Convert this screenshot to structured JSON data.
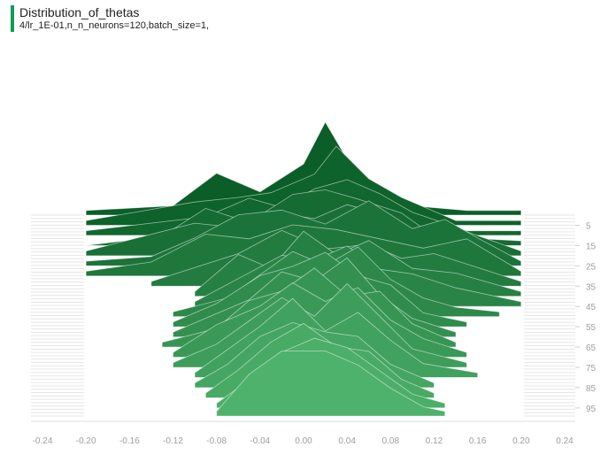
{
  "card": {
    "title": "Distribution_of_thetas",
    "subtitle": "4/lr_1E-01,n_n_neurons=120,batch_size=1,"
  },
  "chart_data": {
    "type": "area",
    "subtype": "tensorboard-histogram-offset",
    "title": "Distribution_of_thetas",
    "x_ticks": [
      "-0.24",
      "-0.20",
      "-0.16",
      "-0.12",
      "-0.08",
      "-0.04",
      "0.00",
      "0.04",
      "0.08",
      "0.12",
      "0.16",
      "0.20",
      "0.24"
    ],
    "xlim": [
      -0.24,
      0.24
    ],
    "step_ticks": [
      "5",
      "15",
      "25",
      "35",
      "45",
      "55",
      "65",
      "75",
      "85",
      "95"
    ],
    "step_range": [
      0,
      99
    ],
    "colors": {
      "back": "#0b5e28",
      "front": "#4fb26c",
      "tick": "#9e9e9e"
    },
    "series": [
      {
        "step": 0,
        "x": [
          -0.2,
          -0.12,
          -0.08,
          -0.04,
          0.0,
          0.02,
          0.05,
          0.1,
          0.15,
          0.2
        ],
        "y": [
          0.05,
          0.1,
          0.45,
          0.25,
          0.55,
          1.0,
          0.4,
          0.1,
          0.05,
          0.05
        ]
      },
      {
        "step": 5,
        "x": [
          -0.2,
          -0.1,
          -0.06,
          -0.03,
          0.01,
          0.03,
          0.06,
          0.09,
          0.14,
          0.2
        ],
        "y": [
          0.05,
          0.25,
          0.3,
          0.35,
          0.55,
          0.85,
          0.5,
          0.3,
          0.05,
          0.05
        ]
      },
      {
        "step": 10,
        "x": [
          -0.2,
          -0.09,
          -0.05,
          -0.02,
          0.01,
          0.04,
          0.07,
          0.1,
          0.15,
          0.2
        ],
        "y": [
          0.05,
          0.2,
          0.4,
          0.3,
          0.5,
          0.6,
          0.45,
          0.25,
          0.05,
          0.05
        ]
      },
      {
        "step": 15,
        "x": [
          -0.2,
          -0.13,
          -0.09,
          -0.05,
          -0.01,
          0.02,
          0.05,
          0.09,
          0.12,
          0.2
        ],
        "y": [
          0.0,
          0.1,
          0.4,
          0.25,
          0.55,
          0.6,
          0.5,
          0.35,
          0.1,
          0.05
        ]
      },
      {
        "step": 20,
        "x": [
          -0.2,
          -0.1,
          -0.06,
          -0.02,
          0.01,
          0.04,
          0.07,
          0.11,
          0.14,
          0.2
        ],
        "y": [
          0.05,
          0.35,
          0.3,
          0.45,
          0.4,
          0.55,
          0.45,
          0.2,
          0.3,
          0.05
        ]
      },
      {
        "step": 25,
        "x": [
          -0.2,
          -0.14,
          -0.1,
          -0.06,
          -0.02,
          0.02,
          0.06,
          0.1,
          0.13,
          0.16,
          0.2
        ],
        "y": [
          0.05,
          0.1,
          0.3,
          0.55,
          0.6,
          0.45,
          0.7,
          0.4,
          0.5,
          0.3,
          0.05
        ]
      },
      {
        "step": 30,
        "x": [
          -0.2,
          -0.14,
          -0.09,
          -0.05,
          -0.01,
          0.03,
          0.07,
          0.11,
          0.15,
          0.2
        ],
        "y": [
          0.05,
          0.15,
          0.45,
          0.4,
          0.55,
          0.5,
          0.4,
          0.3,
          0.4,
          0.05
        ]
      },
      {
        "step": 35,
        "x": [
          -0.14,
          -0.1,
          -0.06,
          -0.02,
          0.02,
          0.06,
          0.09,
          0.12,
          0.16,
          0.2
        ],
        "y": [
          0.05,
          0.2,
          0.35,
          0.6,
          0.4,
          0.45,
          0.3,
          0.35,
          0.2,
          0.05
        ]
      },
      {
        "step": 40,
        "x": [
          -0.1,
          -0.06,
          -0.03,
          0.0,
          0.03,
          0.06,
          0.1,
          0.14,
          0.2
        ],
        "y": [
          0.05,
          0.45,
          0.3,
          0.7,
          0.45,
          0.6,
          0.3,
          0.25,
          0.05
        ]
      },
      {
        "step": 45,
        "x": [
          -0.1,
          -0.06,
          -0.02,
          0.01,
          0.04,
          0.07,
          0.1,
          0.14,
          0.2
        ],
        "y": [
          0.05,
          0.3,
          0.55,
          0.5,
          0.65,
          0.4,
          0.35,
          0.2,
          0.05
        ]
      },
      {
        "step": 50,
        "x": [
          -0.12,
          -0.07,
          -0.04,
          -0.01,
          0.02,
          0.05,
          0.08,
          0.11,
          0.14,
          0.18
        ],
        "y": [
          0.05,
          0.2,
          0.45,
          0.7,
          0.55,
          0.75,
          0.4,
          0.2,
          0.1,
          0.05
        ]
      },
      {
        "step": 55,
        "x": [
          -0.12,
          -0.08,
          -0.04,
          -0.01,
          0.02,
          0.05,
          0.08,
          0.11,
          0.15
        ],
        "y": [
          0.05,
          0.25,
          0.55,
          0.65,
          0.8,
          0.55,
          0.45,
          0.15,
          0.05
        ]
      },
      {
        "step": 60,
        "x": [
          -0.12,
          -0.08,
          -0.05,
          -0.02,
          0.01,
          0.04,
          0.07,
          0.1,
          0.14
        ],
        "y": [
          0.05,
          0.25,
          0.4,
          0.7,
          0.6,
          0.85,
          0.45,
          0.2,
          0.05
        ]
      },
      {
        "step": 65,
        "x": [
          -0.13,
          -0.08,
          -0.05,
          -0.02,
          0.01,
          0.04,
          0.07,
          0.1,
          0.14
        ],
        "y": [
          0.05,
          0.2,
          0.5,
          0.6,
          0.85,
          0.55,
          0.6,
          0.25,
          0.05
        ]
      },
      {
        "step": 70,
        "x": [
          -0.12,
          -0.08,
          -0.04,
          -0.01,
          0.02,
          0.05,
          0.08,
          0.11,
          0.15
        ],
        "y": [
          0.05,
          0.35,
          0.55,
          0.8,
          0.6,
          0.75,
          0.4,
          0.2,
          0.05
        ]
      },
      {
        "step": 75,
        "x": [
          -0.12,
          -0.08,
          -0.05,
          -0.02,
          0.01,
          0.04,
          0.07,
          0.1,
          0.15
        ],
        "y": [
          0.05,
          0.25,
          0.5,
          0.75,
          0.55,
          0.9,
          0.55,
          0.2,
          0.05
        ]
      },
      {
        "step": 80,
        "x": [
          -0.1,
          -0.07,
          -0.04,
          -0.01,
          0.02,
          0.05,
          0.08,
          0.11,
          0.16
        ],
        "y": [
          0.05,
          0.3,
          0.55,
          0.85,
          0.5,
          0.7,
          0.4,
          0.15,
          0.05
        ]
      },
      {
        "step": 85,
        "x": [
          -0.1,
          -0.07,
          -0.04,
          -0.01,
          0.02,
          0.05,
          0.08,
          0.12
        ],
        "y": [
          0.05,
          0.25,
          0.55,
          0.7,
          0.6,
          0.55,
          0.25,
          0.05
        ]
      },
      {
        "step": 90,
        "x": [
          -0.09,
          -0.06,
          -0.03,
          0.0,
          0.03,
          0.06,
          0.09,
          0.12
        ],
        "y": [
          0.05,
          0.3,
          0.6,
          0.8,
          0.55,
          0.5,
          0.2,
          0.05
        ]
      },
      {
        "step": 95,
        "x": [
          -0.08,
          -0.05,
          -0.02,
          0.01,
          0.04,
          0.07,
          0.1,
          0.13
        ],
        "y": [
          0.05,
          0.3,
          0.6,
          0.75,
          0.65,
          0.4,
          0.15,
          0.05
        ]
      },
      {
        "step": 99,
        "x": [
          -0.08,
          -0.05,
          -0.02,
          0.02,
          0.05,
          0.08,
          0.11,
          0.13
        ],
        "y": [
          0.05,
          0.45,
          0.7,
          0.7,
          0.55,
          0.3,
          0.1,
          0.05
        ]
      }
    ]
  }
}
